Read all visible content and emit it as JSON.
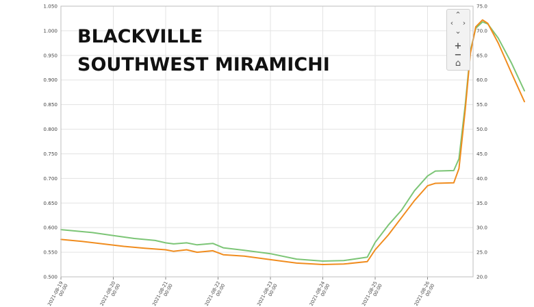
{
  "title_lines": [
    "BLACKVILLE",
    "SOUTHWEST MIRAMICHI"
  ],
  "nav_controls": [
    {
      "name": "pan-up-icon",
      "glyph": "⌃"
    },
    {
      "name": "pan-left-icon",
      "glyph": "‹"
    },
    {
      "name": "pan-right-icon",
      "glyph": "›"
    },
    {
      "name": "pan-down-icon",
      "glyph": "⌄"
    },
    {
      "name": "zoom-in-icon",
      "glyph": "+"
    },
    {
      "name": "zoom-out-icon",
      "glyph": "−"
    },
    {
      "name": "home-icon",
      "glyph": "⌂"
    }
  ],
  "chart_data": {
    "type": "line",
    "title": "",
    "xlabel": "",
    "ylabel": "",
    "y_left": {
      "min": 0.5,
      "max": 1.05,
      "ticks": [
        "0.500",
        "0.550",
        "0.600",
        "0.650",
        "0.700",
        "0.750",
        "0.800",
        "0.850",
        "0.900",
        "0.950",
        "1.000",
        "1.050"
      ]
    },
    "y_right": {
      "min": 20.0,
      "max": 75.0,
      "ticks": [
        "20.0",
        "25.0",
        "30.0",
        "35.0",
        "40.0",
        "45.0",
        "50.0",
        "55.0",
        "60.0",
        "65.0",
        "70.0",
        "75.0"
      ]
    },
    "x_ticks": [
      {
        "date": "2021-08-19",
        "time": "00:00"
      },
      {
        "date": "2021-08-20",
        "time": "00:00"
      },
      {
        "date": "2021-08-21",
        "time": "00:00"
      },
      {
        "date": "2021-08-22",
        "time": "00:00"
      },
      {
        "date": "2021-08-23",
        "time": "00:00"
      },
      {
        "date": "2021-08-24",
        "time": "00:00"
      },
      {
        "date": "2021-08-25",
        "time": "00:00"
      },
      {
        "date": "2021-08-26",
        "time": "00:00"
      }
    ],
    "grid": true,
    "series": [
      {
        "axis": "right",
        "color": "#7cc576",
        "points": [
          [
            0.0,
            29.6
          ],
          [
            0.3,
            29.3
          ],
          [
            0.6,
            29.0
          ],
          [
            1.0,
            28.4
          ],
          [
            1.4,
            27.8
          ],
          [
            1.8,
            27.4
          ],
          [
            2.0,
            26.9
          ],
          [
            2.15,
            26.7
          ],
          [
            2.4,
            26.9
          ],
          [
            2.6,
            26.5
          ],
          [
            2.9,
            26.8
          ],
          [
            3.1,
            25.9
          ],
          [
            3.5,
            25.4
          ],
          [
            4.0,
            24.7
          ],
          [
            4.5,
            23.6
          ],
          [
            5.0,
            23.2
          ],
          [
            5.4,
            23.3
          ],
          [
            5.85,
            24.0
          ],
          [
            6.0,
            27.0
          ],
          [
            6.25,
            30.5
          ],
          [
            6.5,
            33.5
          ],
          [
            6.75,
            37.5
          ],
          [
            7.0,
            40.5
          ],
          [
            7.15,
            41.5
          ],
          [
            7.5,
            41.6
          ],
          [
            7.6,
            44.0
          ],
          [
            7.72,
            55.0
          ],
          [
            7.82,
            66.0
          ],
          [
            7.92,
            70.5
          ],
          [
            8.05,
            71.8
          ],
          [
            8.15,
            71.4
          ],
          [
            8.35,
            68.5
          ],
          [
            8.6,
            63.5
          ],
          [
            8.85,
            57.8
          ]
        ]
      },
      {
        "axis": "right",
        "color": "#f08c1e",
        "points": [
          [
            0.0,
            27.6
          ],
          [
            0.4,
            27.2
          ],
          [
            0.8,
            26.7
          ],
          [
            1.2,
            26.2
          ],
          [
            1.6,
            25.8
          ],
          [
            2.0,
            25.5
          ],
          [
            2.15,
            25.2
          ],
          [
            2.4,
            25.5
          ],
          [
            2.6,
            25.0
          ],
          [
            2.9,
            25.3
          ],
          [
            3.1,
            24.5
          ],
          [
            3.5,
            24.2
          ],
          [
            4.0,
            23.5
          ],
          [
            4.5,
            22.8
          ],
          [
            5.0,
            22.5
          ],
          [
            5.4,
            22.6
          ],
          [
            5.85,
            23.1
          ],
          [
            6.0,
            25.5
          ],
          [
            6.25,
            28.5
          ],
          [
            6.5,
            32.0
          ],
          [
            6.75,
            35.5
          ],
          [
            7.0,
            38.5
          ],
          [
            7.15,
            39.0
          ],
          [
            7.5,
            39.1
          ],
          [
            7.6,
            42.0
          ],
          [
            7.72,
            54.0
          ],
          [
            7.82,
            65.5
          ],
          [
            7.92,
            70.8
          ],
          [
            8.05,
            72.2
          ],
          [
            8.15,
            71.5
          ],
          [
            8.35,
            67.5
          ],
          [
            8.6,
            61.5
          ],
          [
            8.85,
            55.6
          ]
        ]
      }
    ]
  }
}
